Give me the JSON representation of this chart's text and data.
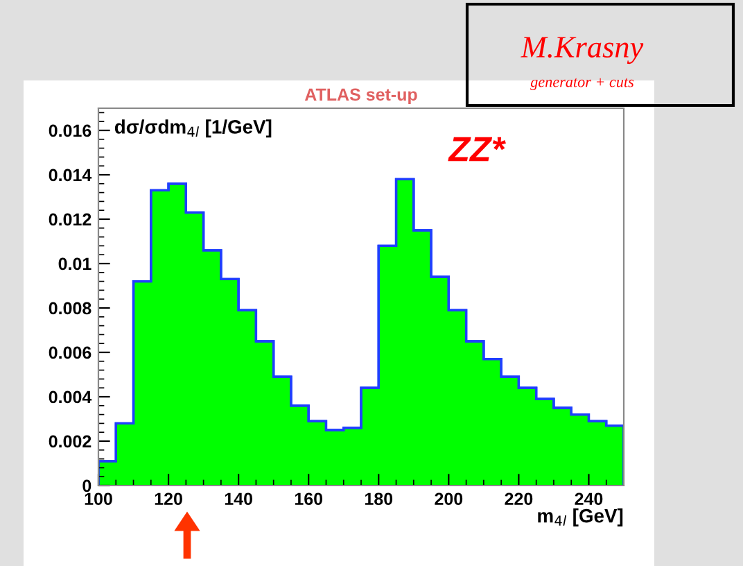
{
  "chart_data": {
    "type": "histogram",
    "title": "ATLAS set-up",
    "xlabel": "m$_{4l}$ [GeV]",
    "ylabel": "dσ/σdm$_{4l}$ [1/GeV]",
    "bins": [
      100,
      105,
      110,
      115,
      120,
      125,
      130,
      135,
      140,
      145,
      150,
      155,
      160,
      165,
      170,
      175,
      180,
      185,
      190,
      195,
      200,
      205,
      210,
      215,
      220,
      225,
      230,
      235,
      240,
      245,
      250
    ],
    "values": [
      0.0011,
      0.0028,
      0.0092,
      0.0133,
      0.0136,
      0.0123,
      0.0106,
      0.0093,
      0.0079,
      0.0065,
      0.0049,
      0.0036,
      0.0029,
      0.0025,
      0.0026,
      0.0044,
      0.0108,
      0.0138,
      0.0115,
      0.0094,
      0.0079,
      0.0065,
      0.0057,
      0.0049,
      0.0044,
      0.0039,
      0.0035,
      0.0032,
      0.0029,
      0.0027
    ],
    "color": "#00ff00",
    "xlim": [
      100,
      250
    ],
    "xticks": [
      100,
      120,
      140,
      160,
      180,
      200,
      220,
      240
    ],
    "ylim": [
      0,
      0.017
    ],
    "yticks": [
      0,
      0.002,
      0.004,
      0.006,
      0.008,
      0.01,
      0.012,
      0.014,
      0.016
    ],
    "grid": false,
    "annotations": [
      "ZZ*",
      "M.Krasny",
      "generator + cuts"
    ]
  }
}
